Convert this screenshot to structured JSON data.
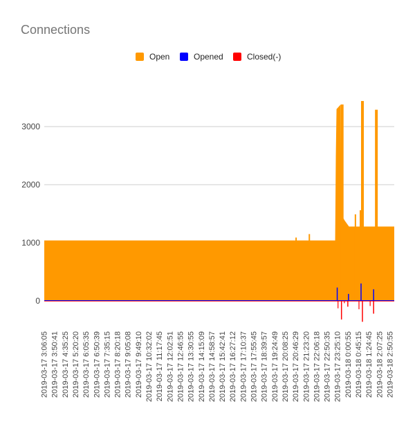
{
  "chart_data": {
    "type": "area",
    "title": "Connections",
    "xlabel": "",
    "ylabel": "",
    "ylim": [
      -400,
      3500
    ],
    "yticks": [
      0,
      1000,
      2000,
      3000
    ],
    "grid": true,
    "legend_position": "top",
    "series": [
      {
        "name": "Open",
        "color": "#ff9900"
      },
      {
        "name": "Opened",
        "color": "#0000ff"
      },
      {
        "name": "Closed(-)",
        "color": "#ff0000"
      }
    ],
    "x_tick_labels": [
      "2019-03-17 3:06:05",
      "2019-03-17 3:50:41",
      "2019-03-17 4:35:25",
      "2019-03-17 5:20:20",
      "2019-03-17 6:05:35",
      "2019-03-17 6:50:39",
      "2019-03-17 7:35:15",
      "2019-03-17 8:20:18",
      "2019-03-17 9:05:08",
      "2019-03-17 9:49:10",
      "2019-03-17 10:32:02",
      "2019-03-17 11:17:45",
      "2019-03-17 12:02:51",
      "2019-03-17 12:46:55",
      "2019-03-17 13:30:55",
      "2019-03-17 14:15:09",
      "2019-03-17 14:58:57",
      "2019-03-17 15:42:41",
      "2019-03-17 16:27:12",
      "2019-03-17 17:10:37",
      "2019-03-17 17:55:45",
      "2019-03-17 18:39:57",
      "2019-03-17 19:24:49",
      "2019-03-17 20:08:25",
      "2019-03-17 20:46:29",
      "2019-03-17 21:23:20",
      "2019-03-17 22:06:18",
      "2019-03-17 22:50:35",
      "2019-03-17 23:25:10",
      "2019-03-18 0:00:55",
      "2019-03-18 0:45:15",
      "2019-03-18 1:24:45",
      "2019-03-18 2:07:25",
      "2019-03-18 2:50:55"
    ],
    "open_segments": [
      {
        "from": "2019-03-17 3:06:05",
        "to": "2019-03-17 22:50:35",
        "value": 1040
      },
      {
        "from": "2019-03-17 22:50:35",
        "to": "2019-03-17 23:25:10",
        "value_range": [
          1380,
          3380
        ]
      },
      {
        "from": "2019-03-17 23:25:10",
        "to": "2019-03-18 2:50:55",
        "value": 1280
      }
    ],
    "open_spikes": [
      {
        "near": "2019-03-17 20:46:29",
        "value": 1090
      },
      {
        "near": "2019-03-17 21:23:20",
        "value": 1150
      },
      {
        "near": "2019-03-17 23:25:10",
        "value": 3380
      },
      {
        "near": "2019-03-18 0:00:55",
        "value": 1490
      },
      {
        "near": "2019-03-18 0:45:15",
        "value": 1560
      },
      {
        "near": "2019-03-18 0:45:15",
        "value": 3440
      },
      {
        "near": "2019-03-18 1:24:45",
        "value": 3290
      }
    ],
    "opened_peaks": [
      {
        "near": "2019-03-17 22:50:35",
        "value": 230
      },
      {
        "near": "2019-03-18 0:00:55",
        "value": 120
      },
      {
        "near": "2019-03-18 0:45:15",
        "value": 300
      },
      {
        "near": "2019-03-18 1:24:45",
        "value": 200
      }
    ],
    "closed_peaks": [
      {
        "near": "2019-03-17 23:25:10",
        "value": -320
      },
      {
        "near": "2019-03-18 0:00:55",
        "value": -100
      },
      {
        "near": "2019-03-18 0:45:15",
        "value": -360
      },
      {
        "near": "2019-03-18 1:24:45",
        "value": -220
      }
    ]
  }
}
